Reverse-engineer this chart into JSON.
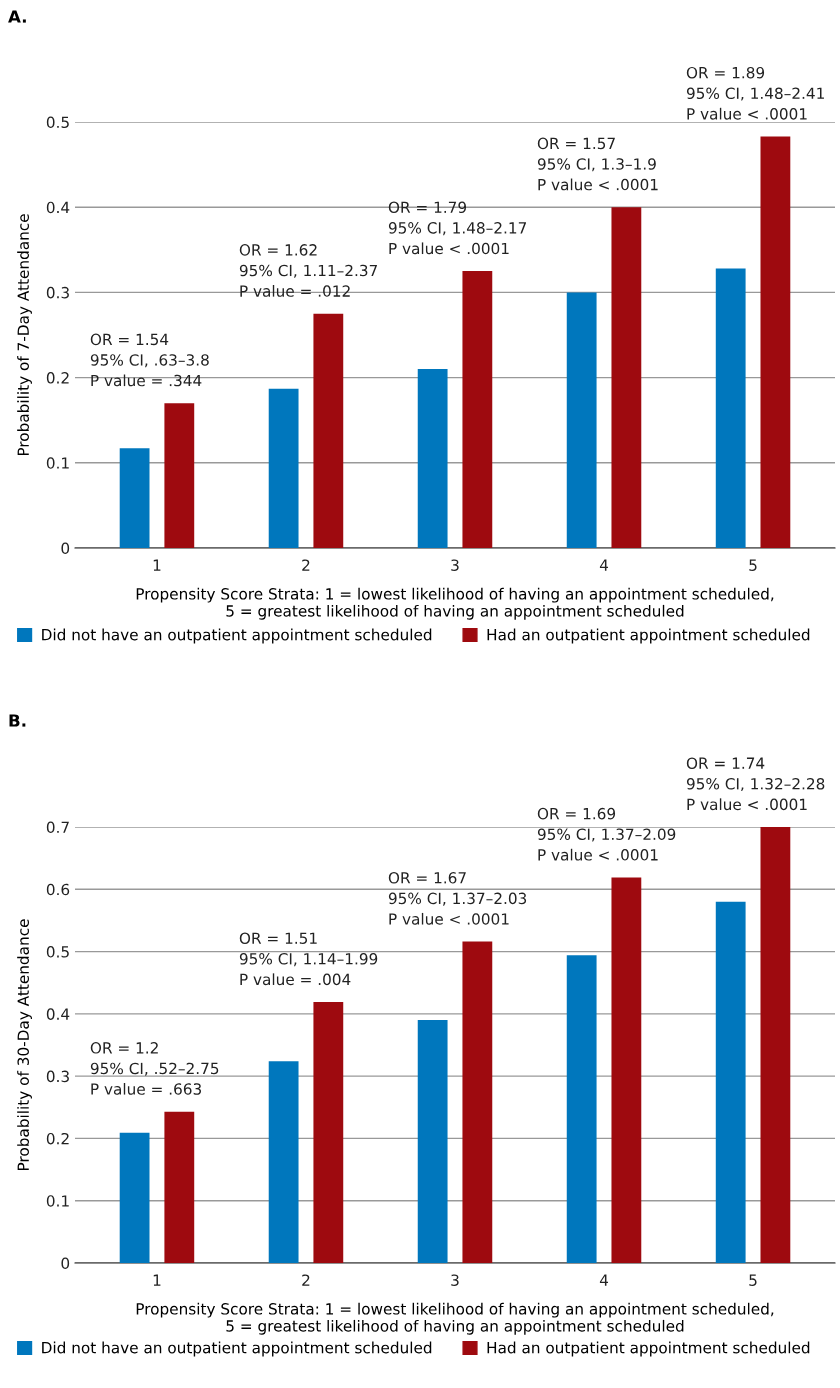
{
  "chart_data": [
    {
      "type": "bar",
      "title": "A.",
      "categories": [
        "1",
        "2",
        "3",
        "4",
        "5"
      ],
      "xlabel": "Propensity Score Strata: 1 = lowest likelihood of having an appointment scheduled,\n5 = greatest likelihood of having an appointment scheduled",
      "ylabel": "Probability of 7-Day Attendance",
      "ylim": [
        0,
        0.5
      ],
      "yticks": [
        {
          "value": 0,
          "label": "0"
        },
        0.1,
        0.2,
        0.3,
        0.4,
        0.5
      ],
      "grid": "y",
      "legend": "bottom",
      "series": [
        {
          "name": "Did not have an outpatient appointment scheduled",
          "color": "#0077bd",
          "values": [
            0.117,
            0.187,
            0.21,
            0.3,
            0.328
          ]
        },
        {
          "name": "Had an outpatient appointment scheduled",
          "color": "#9e0a0f",
          "values": [
            0.17,
            0.275,
            0.325,
            0.4,
            0.483
          ]
        }
      ],
      "annotations": [
        "OR = 1.54\n95% CI, .63–3.8\nP value = .344",
        "OR = 1.62\n95% CI, 1.11–2.37\nP value = .012",
        "OR = 1.79\n95% CI, 1.48–2.17\nP value < .0001",
        "OR = 1.57\n95% CI, 1.3–1.9\nP value < .0001",
        "OR = 1.89\n95% CI, 1.48–2.41\nP value < .0001"
      ]
    },
    {
      "type": "bar",
      "title": "B.",
      "categories": [
        "1",
        "2",
        "3",
        "4",
        "5"
      ],
      "xlabel": "Propensity Score Strata: 1 = lowest likelihood of having an appointment scheduled,\n5 = greatest likelihood of having an appointment scheduled",
      "ylabel": "Probability of 30-Day Attendance",
      "ylim": [
        0,
        0.7
      ],
      "yticks": [
        {
          "value": 0,
          "label": "0"
        },
        0.1,
        0.2,
        0.3,
        0.4,
        0.5,
        0.6,
        0.7
      ],
      "grid": "y",
      "legend": "bottom",
      "series": [
        {
          "name": "Did not have an outpatient appointment scheduled",
          "color": "#0077bd",
          "values": [
            0.209,
            0.324,
            0.39,
            0.494,
            0.58
          ]
        },
        {
          "name": "Had an outpatient appointment scheduled",
          "color": "#9e0a0f",
          "values": [
            0.243,
            0.419,
            0.516,
            0.619,
            0.7
          ]
        }
      ],
      "annotations": [
        "OR = 1.2\n95% CI, .52–2.75\nP value = .663",
        "OR = 1.51\n95% CI, 1.14–1.99\nP value = .004",
        "OR = 1.67\n95% CI, 1.37–2.03\nP value < .0001",
        "OR = 1.69\n95% CI, 1.37–2.09\nP value < .0001",
        "OR = 1.74\n95% CI, 1.32–2.28\nP value < .0001"
      ]
    }
  ]
}
